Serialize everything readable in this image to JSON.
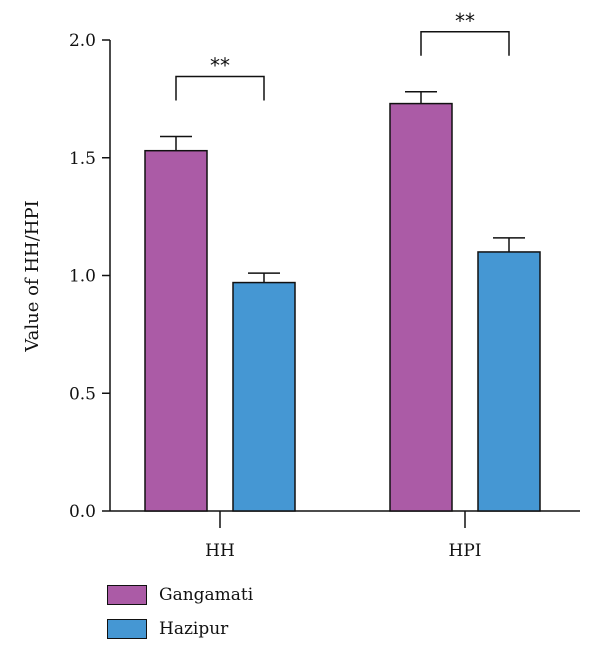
{
  "chart_data": {
    "type": "bar",
    "title": "",
    "xlabel": "",
    "ylabel": "Value of HH/HPI",
    "ylim": [
      0,
      2.0
    ],
    "yticks": [
      "0.0",
      "0.5",
      "1.0",
      "1.5",
      "2.0"
    ],
    "categories": [
      "HH",
      "HPI"
    ],
    "series": [
      {
        "name": "Gangamati",
        "color": "#ab5ba6",
        "values": [
          1.53,
          1.73
        ],
        "errors": [
          0.06,
          0.05
        ]
      },
      {
        "name": "Hazipur",
        "color": "#4597d3",
        "values": [
          0.97,
          1.1
        ],
        "errors": [
          0.04,
          0.06
        ]
      }
    ],
    "annotations": [
      {
        "category": "HH",
        "text": "**"
      },
      {
        "category": "HPI",
        "text": "**"
      }
    ],
    "legend_position": "bottom-left",
    "grid": false
  }
}
